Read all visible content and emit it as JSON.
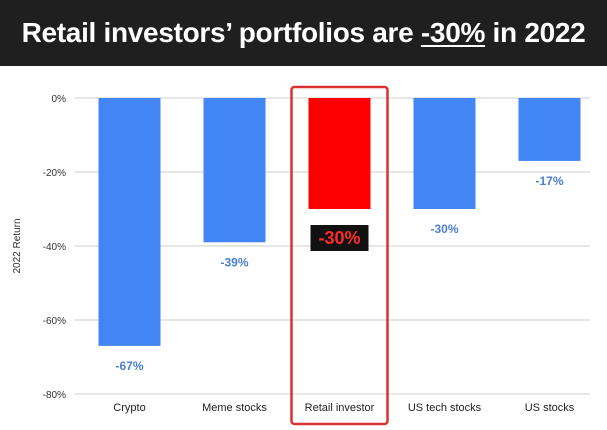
{
  "header": {
    "title_prefix": "Retail investors’ portfolios are ",
    "title_highlight": "-30%",
    "title_suffix": " in 2022"
  },
  "colors": {
    "header_bg": "#1f1f1f",
    "bar_default": "#4285f4",
    "bar_highlight": "#ff0000",
    "label_default": "#4a7fd4",
    "label_highlight_bg": "#111111",
    "label_highlight_text": "#ff2a2a",
    "highlight_box": "#d93030",
    "grid": "#cccccc"
  },
  "chart_data": {
    "type": "bar",
    "ylabel": "2022 Return",
    "xlabel": "",
    "ylim": [
      -80,
      0
    ],
    "yticks": [
      0,
      -20,
      -40,
      -60,
      -80
    ],
    "ytick_labels": [
      "0%",
      "-20%",
      "-40%",
      "-60%",
      "-80%"
    ],
    "grid": "horizontal",
    "categories": [
      "Crypto",
      "Meme stocks",
      "Retail investor",
      "US tech stocks",
      "US stocks"
    ],
    "values": [
      -67,
      -39,
      -30,
      -30,
      -17
    ],
    "value_labels": [
      "-67%",
      "-39%",
      "-30%",
      "-30%",
      "-17%"
    ],
    "highlight_index": 2
  }
}
